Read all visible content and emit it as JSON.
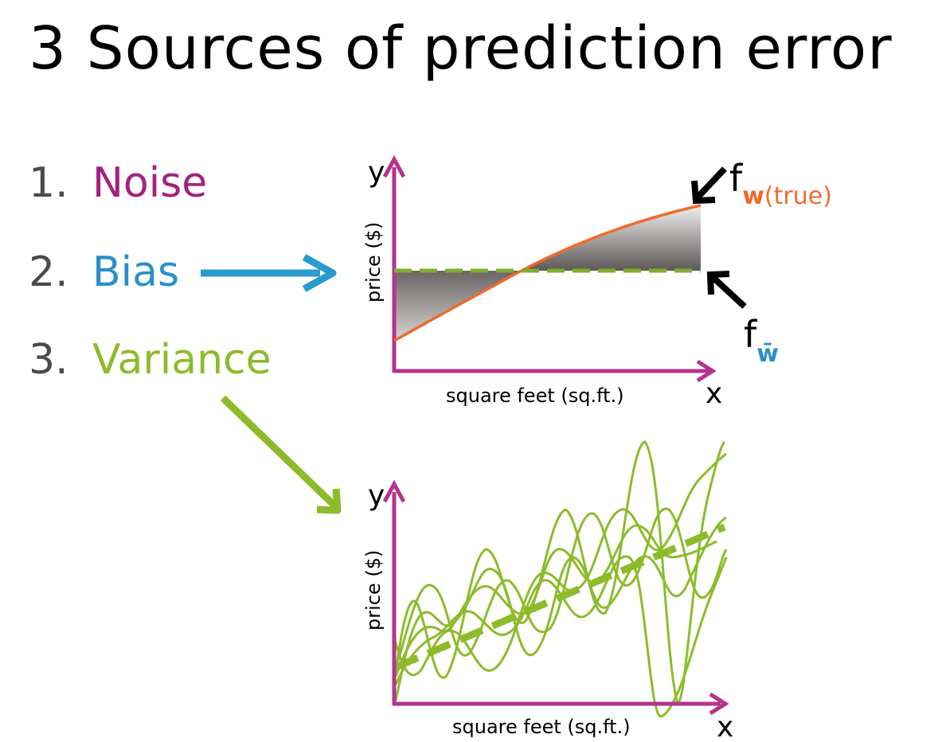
{
  "title": "3 Sources of prediction error",
  "list": [
    {
      "number": "1.",
      "label": "Noise",
      "color": "#a4217e"
    },
    {
      "number": "2.",
      "label": "Bias",
      "color": "#2a8fc8"
    },
    {
      "number": "3.",
      "label": "Variance",
      "color": "#8dbb2a"
    }
  ],
  "bias_plot": {
    "y_axis_letter": "y",
    "x_axis_letter": "x",
    "y_axis_label": "price ($)",
    "x_axis_label": "square feet (sq.ft.)",
    "true_function_label": {
      "f": "f",
      "w": "w",
      "true": "(true)"
    },
    "avg_function_label": {
      "f": "f",
      "w": "w̄"
    }
  },
  "variance_plot": {
    "y_axis_letter": "y",
    "x_axis_letter": "x",
    "y_axis_label": "price ($)",
    "x_axis_label": "square feet (sq.ft.)"
  },
  "colors": {
    "axis": "#b5338f",
    "true_fn": "#f06a2b",
    "avg_fn": "#7fae2e",
    "bias_arrow": "#2a9bd0",
    "variance_arrow": "#8dbb2a",
    "variance_curves": "#8dbb2a"
  }
}
